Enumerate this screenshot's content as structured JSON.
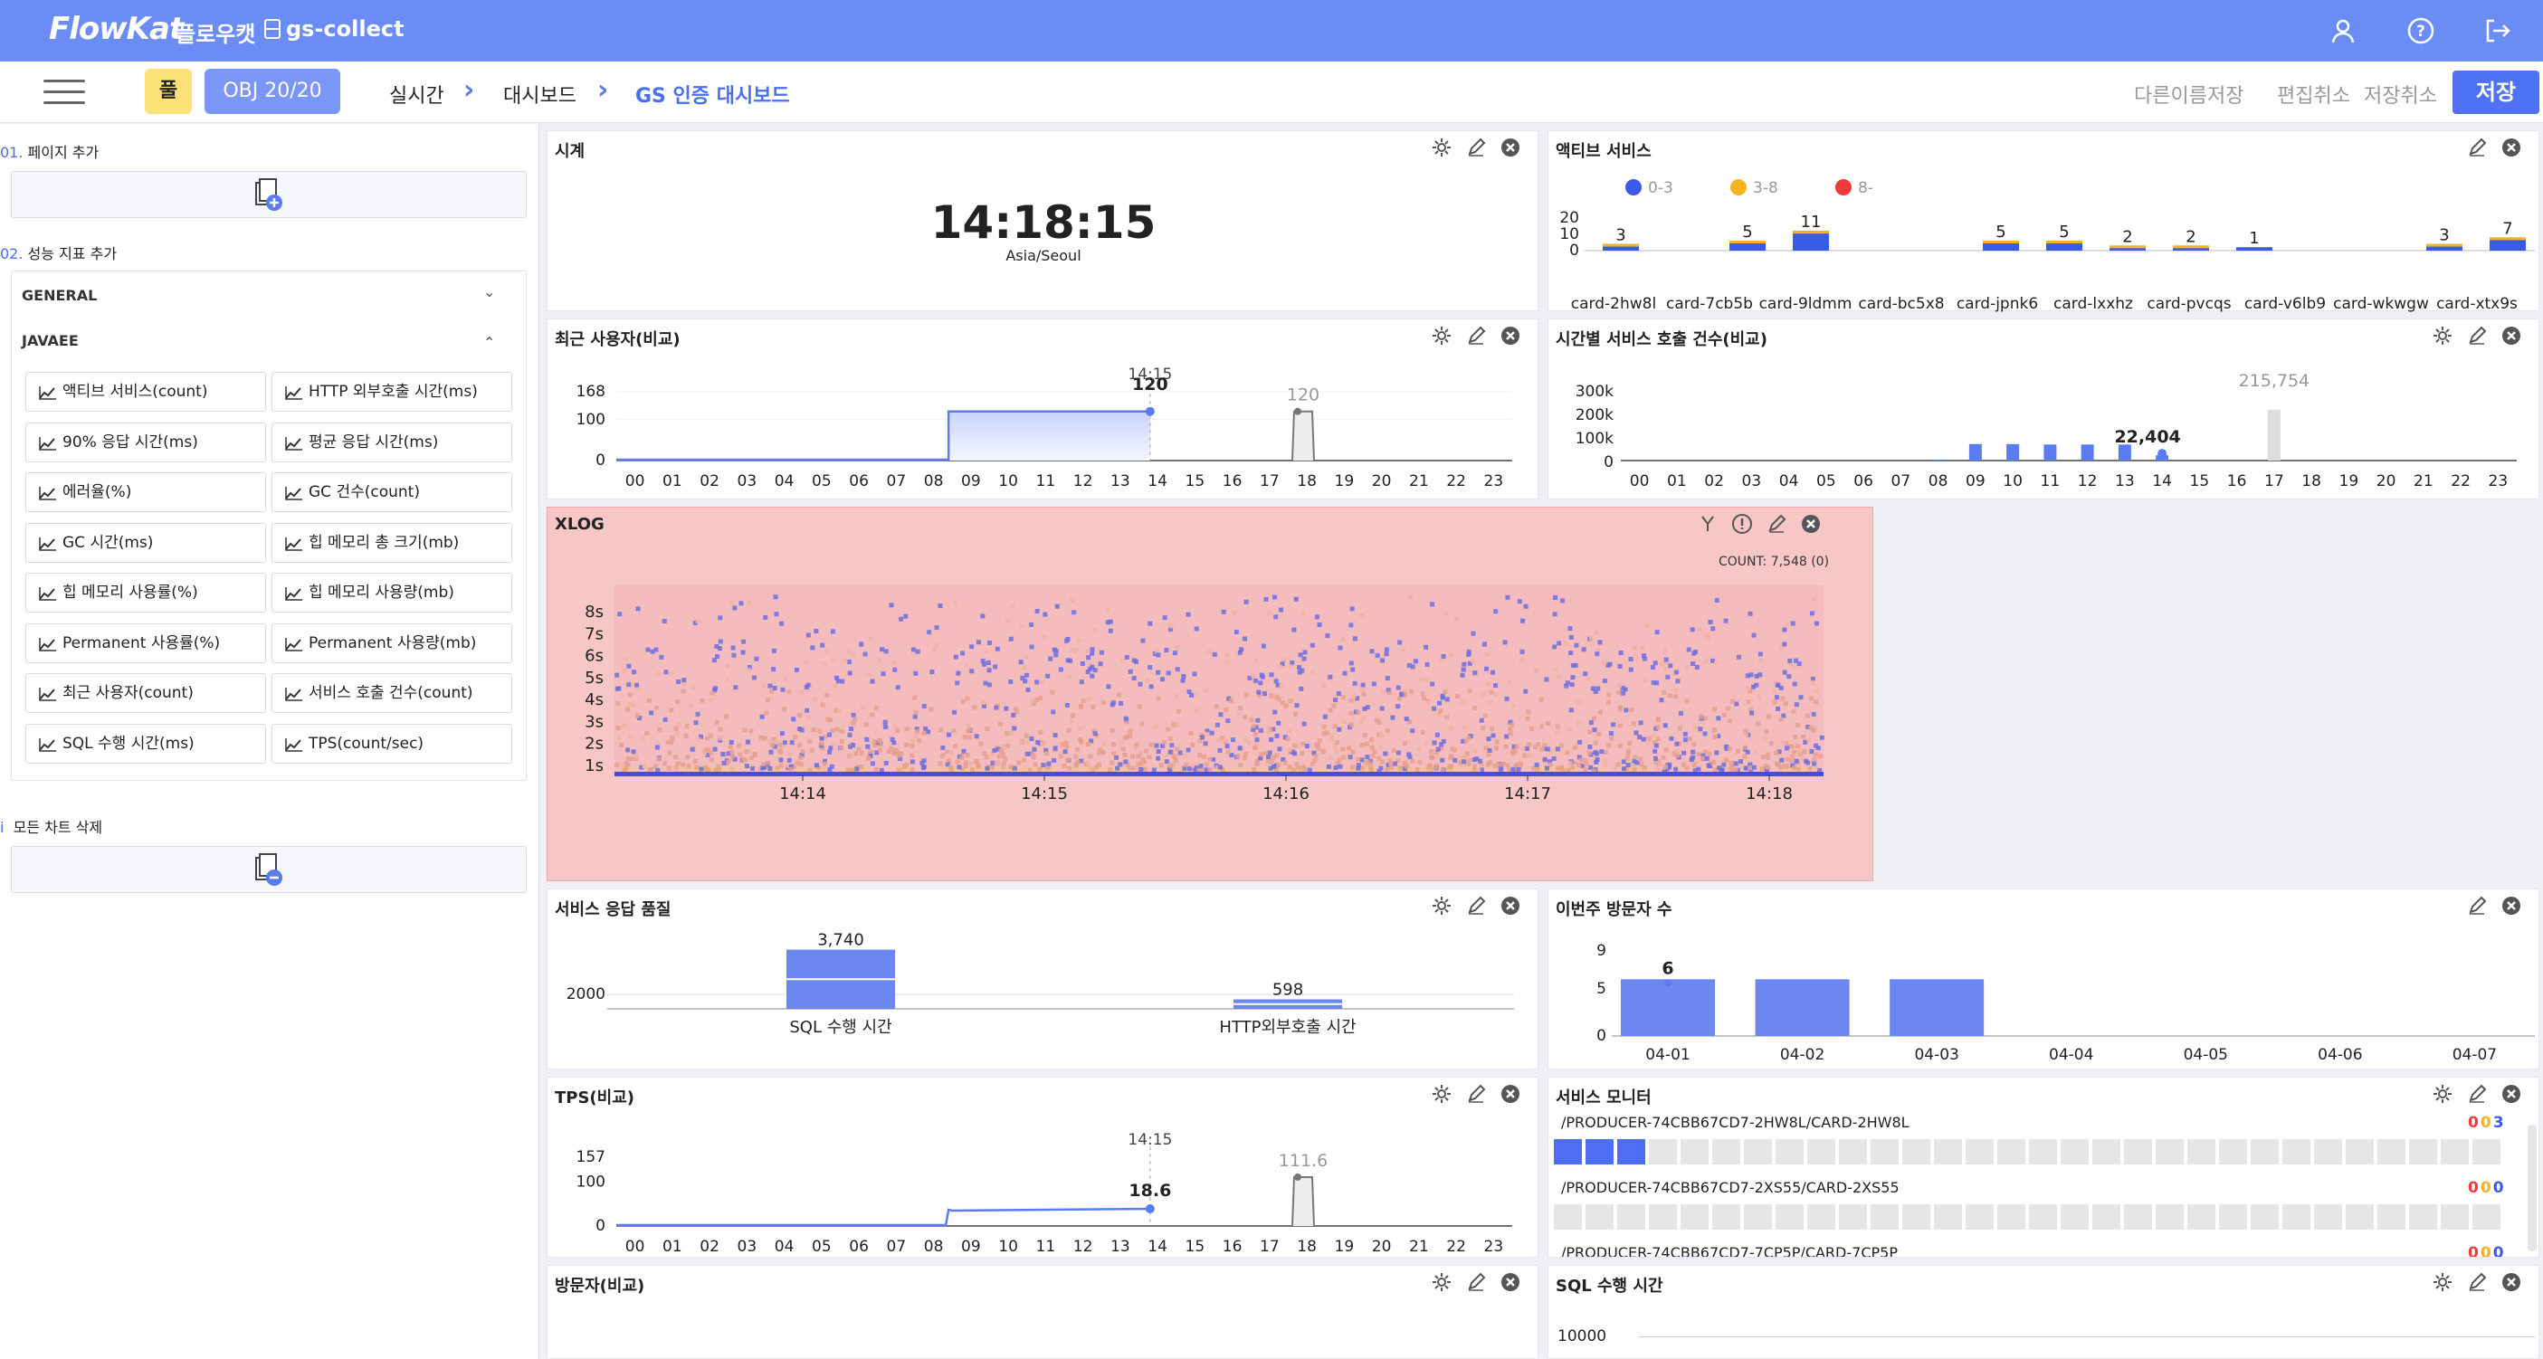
{
  "topbar": {
    "logo": "FlowKat",
    "brand": "플로우캣",
    "project": "gs-collect",
    "icons": [
      "user-icon",
      "help-icon",
      "logout-icon"
    ]
  },
  "subbar": {
    "pool_label": "풀",
    "obj_label": "OBJ 20/20",
    "breadcrumb": [
      "실시간",
      "대시보드",
      "GS 인증 대시보드"
    ],
    "actions": [
      "다른이름저장",
      "편집취소",
      "저장취소"
    ],
    "save": "저장"
  },
  "sidebar": {
    "page_add": {
      "num": "01.",
      "label": "페이지 추가"
    },
    "metric_add": {
      "num": "02.",
      "label": "성능 지표 추가"
    },
    "groups": [
      {
        "name": "GENERAL",
        "expanded": false
      },
      {
        "name": "JAVAEE",
        "expanded": true
      }
    ],
    "metrics": [
      "액티브 서비스(count)",
      "HTTP 외부호출 시간(ms)",
      "90% 응답 시간(ms)",
      "평균 응답 시간(ms)",
      "에러율(%)",
      "GC 건수(count)",
      "GC 시간(ms)",
      "힙 메모리 총 크기(mb)",
      "힙 메모리 사용률(%)",
      "힙 메모리 사용량(mb)",
      "Permanent 사용률(%)",
      "Permanent 사용량(mb)",
      "최근 사용자(count)",
      "서비스 호출 건수(count)",
      "SQL 수행 시간(ms)",
      "TPS(count/sec)"
    ],
    "delete_all": {
      "num": "i",
      "label": "모든 차트 삭제"
    }
  },
  "panels": {
    "clock": {
      "title": "시계",
      "time": "14:18:15",
      "tz": "Asia/Seoul"
    },
    "active": {
      "title": "액티브 서비스",
      "legend": [
        "0-3",
        "3-8",
        "8-"
      ]
    },
    "recent": {
      "title": "최근 사용자(비교)"
    },
    "hourly": {
      "title": "시간별 서비스 호출 건수(비교)"
    },
    "xlog": {
      "title": "XLOG",
      "count": "COUNT: 7,548 (0)"
    },
    "quality": {
      "title": "서비스 응답 품질"
    },
    "visitors_week": {
      "title": "이번주 방문자 수"
    },
    "tps": {
      "title": "TPS(비교)"
    },
    "monitor": {
      "title": "서비스 모니터",
      "rows": [
        {
          "name": "/PRODUCER-74CBB67CD7-2HW8L/CARD-2HW8L",
          "counts": [
            "0",
            "0",
            "3"
          ],
          "active": 3
        },
        {
          "name": "/PRODUCER-74CBB67CD7-2XS55/CARD-2XS55",
          "counts": [
            "0",
            "0",
            "0"
          ],
          "active": 0
        },
        {
          "name": "/PRODUCER-74CBB67CD7-7CP5P/CARD-7CP5P",
          "counts": [
            "0",
            "0",
            "0"
          ],
          "active": 0
        }
      ]
    },
    "visitors": {
      "title": "방문자(비교)"
    },
    "sql": {
      "title": "SQL 수행 시간",
      "ytick": "10000"
    }
  },
  "colors": {
    "primary": "#6c8cf5",
    "bar": "#6c88f0",
    "low": "#3a5be8",
    "mid": "#f5b324",
    "high": "#ee3b3b",
    "xlog_bg": "#f7c6c6"
  },
  "chart_data": [
    {
      "type": "bar",
      "name": "active_services",
      "categories": [
        "card-2hw8l",
        "card-7cb5b",
        "card-9ldmm",
        "card-bc5x8",
        "card-jpnk6",
        "card-lxxhz",
        "card-pvcqs",
        "card-v6lb9",
        "card-wkwgw",
        "card-xtx9s"
      ],
      "y_ticks": [
        "20",
        "10",
        "0"
      ],
      "bar_values": [
        3,
        null,
        5,
        11,
        null,
        null,
        5,
        5,
        2,
        2,
        1,
        null,
        null,
        3,
        7
      ],
      "labels": [
        "3",
        "5",
        "11",
        "5",
        "5",
        "2",
        "2",
        "1",
        "3",
        "7"
      ]
    },
    {
      "type": "line",
      "name": "recent_users",
      "x": [
        "00",
        "01",
        "02",
        "03",
        "04",
        "05",
        "06",
        "07",
        "08",
        "09",
        "10",
        "11",
        "12",
        "13",
        "14",
        "15",
        "16",
        "17",
        "18",
        "19",
        "20",
        "21",
        "22",
        "23"
      ],
      "y_ticks": [
        "168",
        "100",
        "0"
      ],
      "today_value": "120",
      "today_time": "14:15",
      "yesterday_peak": "120",
      "ylim": [
        0,
        168
      ]
    },
    {
      "type": "bar",
      "name": "hourly_calls",
      "x": [
        "00",
        "01",
        "02",
        "03",
        "04",
        "05",
        "06",
        "07",
        "08",
        "09",
        "10",
        "11",
        "12",
        "13",
        "14",
        "15",
        "16",
        "17",
        "18",
        "19",
        "20",
        "21",
        "22",
        "23"
      ],
      "y_ticks": [
        "300k",
        "200k",
        "100k",
        "0"
      ],
      "today": [
        0,
        0,
        0,
        0,
        0,
        0,
        0,
        0,
        4000,
        70000,
        70000,
        68000,
        68000,
        68000,
        22404,
        0,
        0,
        0,
        0,
        0,
        0,
        0,
        0,
        0
      ],
      "yesterday": [
        0,
        0,
        0,
        0,
        0,
        0,
        0,
        0,
        0,
        0,
        0,
        0,
        0,
        0,
        0,
        0,
        0,
        215754,
        0,
        0,
        0,
        0,
        0,
        0
      ],
      "labels": [
        "22,404",
        "215,754"
      ]
    },
    {
      "type": "scatter",
      "name": "xlog",
      "x_ticks": [
        "14:14",
        "14:15",
        "14:16",
        "14:17",
        "14:18"
      ],
      "y_ticks": [
        "8s",
        "7s",
        "6s",
        "5s",
        "4s",
        "3s",
        "2s",
        "1s"
      ]
    },
    {
      "type": "bar",
      "name": "service_quality",
      "categories": [
        "SQL 수행 시간",
        "HTTP외부호출 시간"
      ],
      "values": [
        3740,
        598
      ],
      "labels": [
        "3,740",
        "598"
      ],
      "y_ticks": [
        "2000"
      ]
    },
    {
      "type": "bar",
      "name": "weekly_visitors",
      "categories": [
        "04-01",
        "04-02",
        "04-03",
        "04-04",
        "04-05",
        "04-06",
        "04-07"
      ],
      "values": [
        6,
        6,
        6,
        0,
        0,
        0,
        0
      ],
      "y_ticks": [
        "9",
        "5",
        "0"
      ],
      "label": "6"
    },
    {
      "type": "line",
      "name": "tps",
      "x": [
        "00",
        "01",
        "02",
        "03",
        "04",
        "05",
        "06",
        "07",
        "08",
        "09",
        "10",
        "11",
        "12",
        "13",
        "14",
        "15",
        "16",
        "17",
        "18",
        "19",
        "20",
        "21",
        "22",
        "23"
      ],
      "y_ticks": [
        "157",
        "100",
        "0"
      ],
      "today_value": "18.6",
      "today_time": "14:15",
      "yesterday_peak": "111.6",
      "ylim": [
        0,
        157
      ]
    }
  ]
}
